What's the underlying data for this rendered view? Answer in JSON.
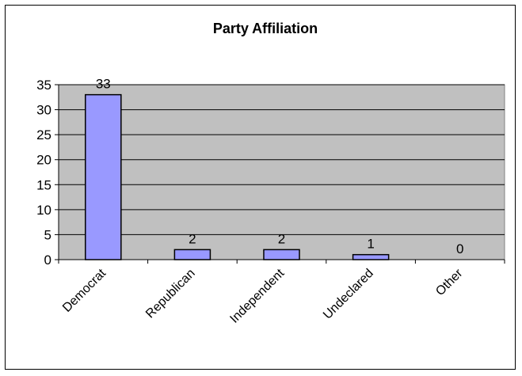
{
  "chart_data": {
    "type": "bar",
    "title": "Party Affiliation",
    "categories": [
      "Democrat",
      "Republican",
      "Independent",
      "Undeclared",
      "Other"
    ],
    "values": [
      33,
      2,
      2,
      1,
      0
    ],
    "data_labels": [
      "33",
      "2",
      "2",
      "1",
      "0"
    ],
    "ylim": [
      0,
      35
    ],
    "yticks": [
      0,
      5,
      10,
      15,
      20,
      25,
      30,
      35
    ],
    "xlabel": "",
    "ylabel": "",
    "grid": true,
    "legend": "none",
    "colors": {
      "bar_fill": "#9999ff",
      "bar_stroke": "#000000",
      "plot_background": "#c0c0c0",
      "gridline": "#000000"
    }
  }
}
